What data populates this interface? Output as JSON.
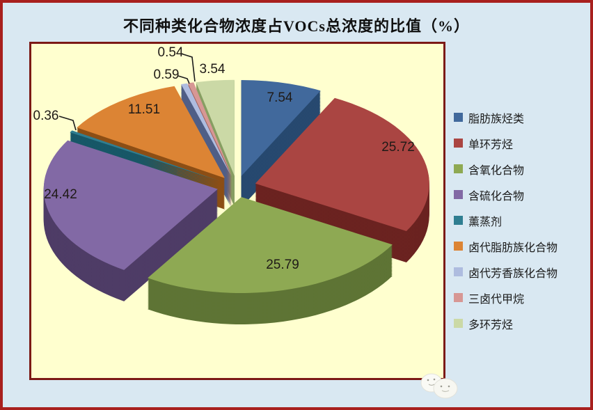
{
  "page": {
    "background": "#D9E8F2",
    "outer_border_color": "#A8201E",
    "plot_background": "#FFFFCF",
    "plot_border_color": "#7C1A16",
    "watermark_icon": "cloud-faces-sticker"
  },
  "chart_data": {
    "type": "pie",
    "effect": "3d-exploded-pie",
    "title": "不同种类化合物浓度占VOCs总浓度的比值（%）",
    "unit": "%",
    "legend_position": "right",
    "start_angle_deg": 0,
    "grid": false,
    "categories": [
      "脂肪族烃类",
      "单环芳烃",
      "含氧化合物",
      "含硫化合物",
      "薰蒸剂",
      "卤代脂肪族化合物",
      "卤代芳香族化合物",
      "三卤代甲烷",
      "多环芳烃"
    ],
    "values": [
      7.54,
      25.72,
      25.79,
      24.42,
      0.36,
      11.51,
      0.59,
      0.54,
      3.54
    ],
    "data_labels": [
      "7.54",
      "25.72",
      "25.79",
      "24.42",
      "0.36",
      "11.51",
      "0.59",
      "0.54",
      "3.54"
    ],
    "colors": [
      "#41699C",
      "#AA4542",
      "#8EA953",
      "#8269A5",
      "#2F7E91",
      "#DC8434",
      "#AEBCDF",
      "#D79794",
      "#CBD9A6"
    ],
    "dark_colors": [
      "#27496F",
      "#6B2320",
      "#5E7435",
      "#4E3C66",
      "#175767",
      "#8C4E15",
      "#4F5E86",
      "#9E615E",
      "#879E62"
    ],
    "label_color": "#1F1A17",
    "leader_line_color": "#1b1b1b"
  }
}
